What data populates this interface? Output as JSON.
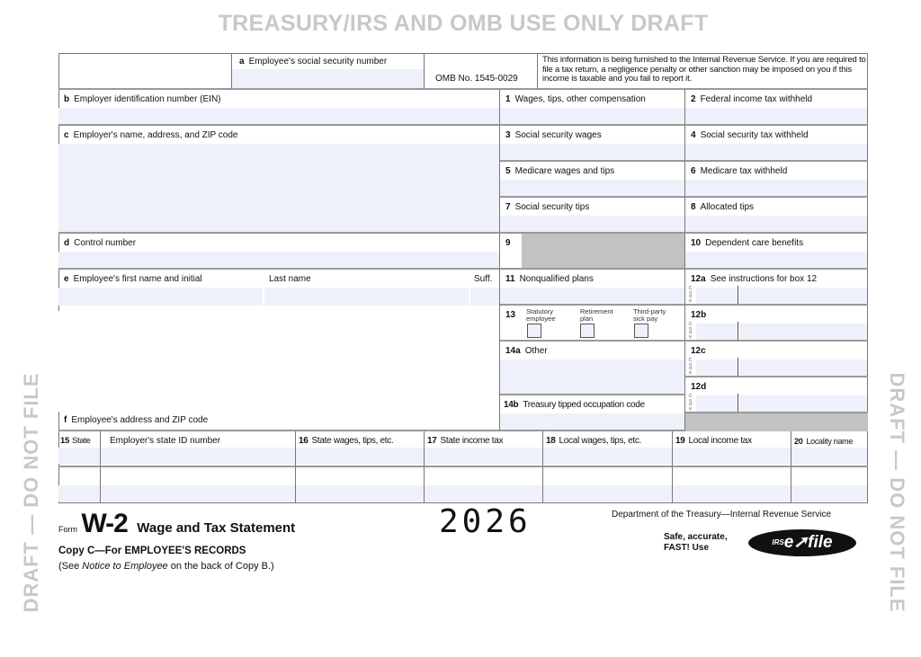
{
  "watermarks": {
    "top": "TREASURY/IRS AND OMB USE ONLY DRAFT",
    "left": "DRAFT — DO NOT FILE",
    "right": "DRAFT — DO NOT FILE"
  },
  "header": {
    "box_a": "Employee's social security number",
    "box_a_letter": "a",
    "omb": "OMB No. 1545-0029",
    "notice": "This information is being furnished to the Internal Revenue Service. If you are required to file a tax return, a negligence penalty or other sanction may be imposed on you if this income is taxable and you fail to report it."
  },
  "boxes": {
    "b": {
      "num": "b",
      "label": "Employer identification number (EIN)"
    },
    "c": {
      "num": "c",
      "label": "Employer's name, address, and ZIP code"
    },
    "d": {
      "num": "d",
      "label": "Control number"
    },
    "e": {
      "num": "e",
      "label": "Employee's first name and initial",
      "last": "Last name",
      "suff": "Suff."
    },
    "f": {
      "num": "f",
      "label": "Employee's address and ZIP code"
    },
    "b1": {
      "num": "1",
      "label": "Wages, tips, other compensation"
    },
    "b2": {
      "num": "2",
      "label": "Federal income tax withheld"
    },
    "b3": {
      "num": "3",
      "label": "Social security wages"
    },
    "b4": {
      "num": "4",
      "label": "Social security tax withheld"
    },
    "b5": {
      "num": "5",
      "label": "Medicare wages and tips"
    },
    "b6": {
      "num": "6",
      "label": "Medicare tax withheld"
    },
    "b7": {
      "num": "7",
      "label": "Social security tips"
    },
    "b8": {
      "num": "8",
      "label": "Allocated tips"
    },
    "b9": {
      "num": "9"
    },
    "b10": {
      "num": "10",
      "label": "Dependent care benefits"
    },
    "b11": {
      "num": "11",
      "label": "Nonqualified plans"
    },
    "b12a": {
      "num": "12a",
      "label": "See instructions for box 12"
    },
    "b12b": {
      "num": "12b"
    },
    "b12c": {
      "num": "12c"
    },
    "b12d": {
      "num": "12d"
    },
    "code": "Code",
    "b13": {
      "num": "13",
      "statutory": "Statutory employee",
      "retirement": "Retirement plan",
      "thirdparty": "Third-party sick pay"
    },
    "b14a": {
      "num": "14a",
      "label": "Other"
    },
    "b14b": {
      "num": "14b",
      "label": "Treasury tipped occupation code"
    },
    "b15": {
      "num": "15",
      "label": "State",
      "id_label": "Employer's state ID number"
    },
    "b16": {
      "num": "16",
      "label": "State wages, tips, etc."
    },
    "b17": {
      "num": "17",
      "label": "State income tax"
    },
    "b18": {
      "num": "18",
      "label": "Local wages, tips, etc."
    },
    "b19": {
      "num": "19",
      "label": "Local income tax"
    },
    "b20": {
      "num": "20",
      "label": "Locality name"
    }
  },
  "footer": {
    "form_word": "Form",
    "form_name": "W-2",
    "title": "Wage and Tax Statement",
    "year": "2026",
    "copy": "Copy C—For EMPLOYEE'S RECORDS",
    "note_pre": "(See ",
    "note_em": "Notice to Employee",
    "note_post": " on the back of Copy B.)",
    "dept": "Department of the Treasury—Internal Revenue Service",
    "efile_line1": "Safe, accurate,",
    "efile_line2": "FAST! Use",
    "efile_logo": "IRS e-file"
  }
}
